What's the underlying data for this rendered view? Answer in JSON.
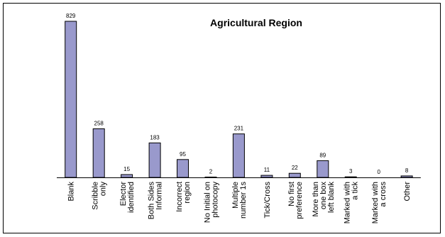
{
  "chart_data": {
    "type": "bar",
    "title": "Agricultural Region",
    "xlabel": "",
    "ylabel": "",
    "ylim": [
      0,
      829
    ],
    "grid": false,
    "legend": "none",
    "bar_color": "#9999CC",
    "bar_edge_color": "#000000",
    "categories": [
      [
        "Blank"
      ],
      [
        "Scribble",
        "only"
      ],
      [
        "Elector",
        "identified"
      ],
      [
        "Both Sides",
        "Informal"
      ],
      [
        "Incorrect",
        "region"
      ],
      [
        "No Initial on",
        "photocopy"
      ],
      [
        "Multiple",
        "number 1s"
      ],
      [
        "Tick/Cross"
      ],
      [
        "No first",
        "preference"
      ],
      [
        "More than",
        "one box",
        "left blank"
      ],
      [
        "Marked with",
        "a tick"
      ],
      [
        "Marked with",
        "a cross"
      ],
      [
        "Other"
      ]
    ],
    "values": [
      829,
      258,
      15,
      183,
      95,
      2,
      231,
      11,
      22,
      89,
      3,
      0,
      8
    ],
    "data_labels": [
      "829",
      "258",
      "15",
      "183",
      "95",
      "2",
      "231",
      "11",
      "22",
      "89",
      "3",
      "0",
      "8"
    ]
  }
}
